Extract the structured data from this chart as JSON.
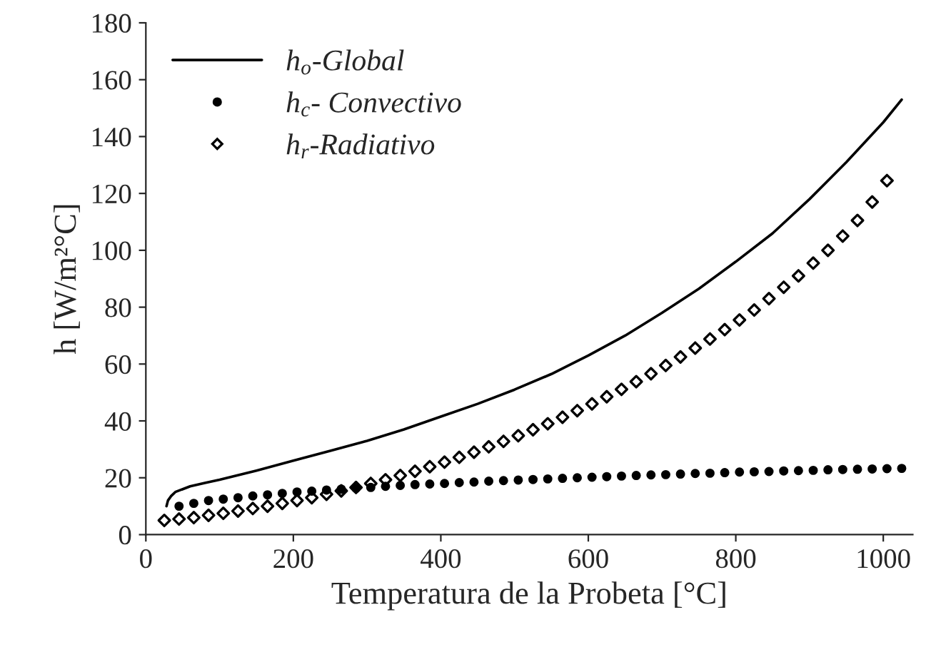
{
  "chart_data": {
    "type": "line",
    "xlabel": "Temperatura de la Probeta [°C]",
    "ylabel": "h [W/m²°C]",
    "xlim": [
      0,
      1040
    ],
    "ylim": [
      0,
      180
    ],
    "xticks": [
      0,
      200,
      400,
      600,
      800,
      1000
    ],
    "yticks": [
      0,
      20,
      40,
      60,
      80,
      100,
      120,
      140,
      160,
      180
    ],
    "grid": false,
    "legend": "top left",
    "series": [
      {
        "name": "h$_{o}$-Global",
        "marker": "none",
        "line_style": "solid",
        "color": "#000000",
        "x": [
          28,
          30,
          34,
          40,
          50,
          60,
          80,
          100,
          150,
          200,
          250,
          300,
          350,
          400,
          450,
          500,
          550,
          600,
          650,
          700,
          750,
          800,
          850,
          900,
          950,
          1000,
          1025
        ],
        "values": [
          10,
          12,
          13.5,
          15,
          16,
          17,
          18.2,
          19.3,
          22.5,
          26,
          29.5,
          33,
          37,
          41.5,
          46,
          51,
          56.5,
          63,
          70,
          78,
          86.5,
          96,
          106,
          118,
          131,
          145,
          153
        ]
      },
      {
        "name": "h$_{c}$- Convectivo",
        "type": "scatter",
        "marker": "circle",
        "color": "#000000",
        "x": [
          45,
          65,
          85,
          105,
          125,
          145,
          165,
          185,
          205,
          225,
          245,
          265,
          285,
          305,
          325,
          345,
          365,
          385,
          405,
          425,
          445,
          465,
          485,
          505,
          525,
          545,
          565,
          585,
          605,
          625,
          645,
          665,
          685,
          705,
          725,
          745,
          765,
          785,
          805,
          825,
          845,
          865,
          885,
          905,
          925,
          945,
          965,
          985,
          1005,
          1025
        ],
        "values": [
          10,
          11,
          12,
          12.5,
          13,
          13.6,
          14,
          14.5,
          15,
          15.3,
          15.7,
          16,
          16.3,
          16.6,
          17,
          17.3,
          17.6,
          17.8,
          18,
          18.3,
          18.5,
          18.8,
          19,
          19.2,
          19.4,
          19.6,
          19.8,
          20,
          20.2,
          20.4,
          20.6,
          20.8,
          21,
          21.1,
          21.3,
          21.5,
          21.6,
          21.8,
          22,
          22.1,
          22.2,
          22.4,
          22.5,
          22.6,
          22.8,
          22.9,
          23,
          23.1,
          23.2,
          23.3
        ]
      },
      {
        "name": "h$_{r}$-Radiativo",
        "type": "scatter",
        "marker": "diamond",
        "color": "#000000",
        "x": [
          25,
          45,
          65,
          85,
          105,
          125,
          145,
          165,
          185,
          205,
          225,
          245,
          265,
          285,
          305,
          325,
          345,
          365,
          385,
          405,
          425,
          445,
          465,
          485,
          505,
          525,
          545,
          565,
          585,
          605,
          625,
          645,
          665,
          685,
          705,
          725,
          745,
          765,
          785,
          805,
          825,
          845,
          865,
          885,
          905,
          925,
          945,
          965,
          985,
          1005
        ],
        "values": [
          5,
          5.5,
          6,
          6.8,
          7.5,
          8.3,
          9.2,
          10,
          11,
          12,
          13,
          14.2,
          15.4,
          16.6,
          18,
          19.3,
          20.8,
          22.3,
          23.9,
          25.5,
          27.2,
          29,
          30.9,
          32.8,
          34.8,
          36.9,
          39,
          41.3,
          43.6,
          46,
          48.5,
          51.1,
          53.8,
          56.6,
          59.5,
          62.5,
          65.6,
          68.8,
          72.1,
          75.5,
          79,
          83,
          87,
          91,
          95.5,
          100,
          105,
          110.5,
          117,
          124.5
        ]
      }
    ]
  }
}
